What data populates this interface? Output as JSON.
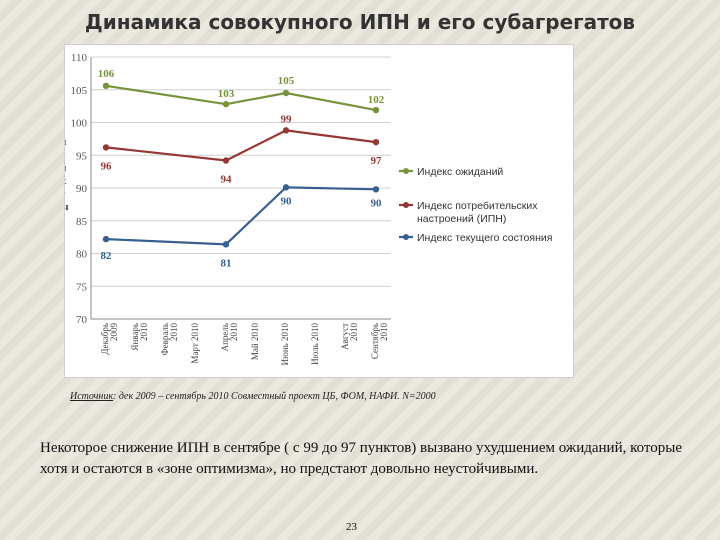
{
  "slide": {
    "title": "Динамика совокупного ИПН и его субагрегатов",
    "source_label": "Источник",
    "source_text": ": дек 2009 – сентябрь 2010 Совместный проект ЦБ, ФОМ, НАФИ. N=2000",
    "body_text": "Некоторое снижение ИПН в сентябре ( с 99 до 97 пунктов) вызвано ухудшением ожиданий, которые хотя и остаются в «зоне оптимизма», но предстают довольно неустойчивыми.",
    "page_number": "23"
  },
  "chart_data": {
    "type": "line",
    "ylabel": "п у н к т ы",
    "ylim": [
      70,
      110
    ],
    "yticks": [
      70,
      75,
      80,
      85,
      90,
      95,
      100,
      105,
      110
    ],
    "grid": true,
    "legend_position": "right",
    "categories": [
      [
        "Декабрь",
        "2009"
      ],
      [
        "Январь",
        "2010"
      ],
      [
        "Февраль",
        "2010"
      ],
      [
        "Март 2010"
      ],
      [
        "Апрель",
        "2010"
      ],
      [
        "Май 2010"
      ],
      [
        "Июнь 2010"
      ],
      [
        "Июль 2010"
      ],
      [
        "Август",
        "2010"
      ],
      [
        "Сентябрь",
        "2010"
      ]
    ],
    "series": [
      {
        "name": "Индекс ожиданий",
        "color": "#77933c",
        "points": [
          [
            0,
            105.6
          ],
          [
            4,
            102.8
          ],
          [
            6,
            104.5
          ],
          [
            9,
            101.9
          ]
        ],
        "labels": [
          "106",
          "103",
          "105",
          "102"
        ]
      },
      {
        "name": "Индекс потребительских настроений (ИПН)",
        "color": "#953735",
        "points": [
          [
            0,
            96.2
          ],
          [
            4,
            94.2
          ],
          [
            6,
            98.8
          ],
          [
            9,
            97.0
          ]
        ],
        "labels": [
          "96",
          "94",
          "99",
          "97"
        ]
      },
      {
        "name": "Индекс текущего состояния",
        "color": "#376092",
        "points": [
          [
            0,
            82.2
          ],
          [
            4,
            81.4
          ],
          [
            6,
            90.1
          ],
          [
            9,
            89.8
          ]
        ],
        "labels": [
          "82",
          "81",
          "90",
          "90"
        ]
      }
    ]
  }
}
